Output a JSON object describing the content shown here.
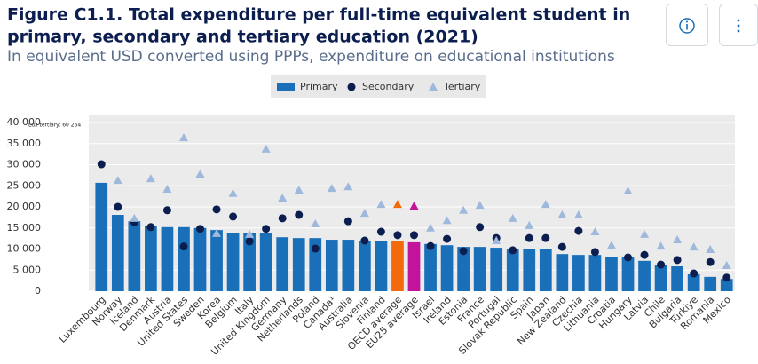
{
  "chart_data": {
    "type": "bar",
    "title": [
      "Figure C1.1. Total expenditure per full-time equivalent student in",
      "primary, secondary and tertiary education (2021)"
    ],
    "subtitle": "In equivalent USD converted using PPPs, expenditure on educational institutions",
    "annotation": "Lux tertiary: 60 264",
    "categories": [
      "Luxembourg",
      "Norway",
      "Iceland",
      "Denmark",
      "Austria",
      "United States",
      "Sweden",
      "Korea",
      "Belgium",
      "Italy",
      "United Kingdom",
      "Germany",
      "Netherlands",
      "Poland",
      "Canada¹",
      "Australia",
      "Slovenia",
      "Finland",
      "OECD average",
      "EU25 average",
      "Israel",
      "Ireland",
      "Estonia",
      "France",
      "Portugal",
      "Slovak Republic",
      "Spain",
      "Japan",
      "New Zealand",
      "Czechia",
      "Lithuania",
      "Croatia",
      "Hungary",
      "Latvia",
      "Chile",
      "Bulgaria",
      "Türkiye",
      "Romania",
      "Mexico"
    ],
    "series": [
      {
        "name": "Primary",
        "mark": "bar",
        "color": "#1a6fb9",
        "colors": [
          "#1a6fb9",
          "#1a6fb9",
          "#1a6fb9",
          "#1a6fb9",
          "#1a6fb9",
          "#1a6fb9",
          "#1a6fb9",
          "#1a6fb9",
          "#1a6fb9",
          "#1a6fb9",
          "#1a6fb9",
          "#1a6fb9",
          "#1a6fb9",
          "#1a6fb9",
          "#1a6fb9",
          "#1a6fb9",
          "#1a6fb9",
          "#1a6fb9",
          "#f26a0b",
          "#c4139b",
          "#1a6fb9",
          "#1a6fb9",
          "#1a6fb9",
          "#1a6fb9",
          "#1a6fb9",
          "#1a6fb9",
          "#1a6fb9",
          "#1a6fb9",
          "#1a6fb9",
          "#1a6fb9",
          "#1a6fb9",
          "#1a6fb9",
          "#1a6fb9",
          "#1a6fb9",
          "#1a6fb9",
          "#1a6fb9",
          "#1a6fb9",
          "#1a6fb9",
          "#1a6fb9"
        ],
        "values": [
          25700,
          18100,
          16600,
          15400,
          15200,
          15200,
          15000,
          14500,
          13700,
          13700,
          13700,
          12800,
          12600,
          12600,
          12200,
          12200,
          12000,
          12000,
          11800,
          11600,
          11200,
          10900,
          10500,
          10500,
          10300,
          10100,
          10100,
          9900,
          8800,
          8600,
          8600,
          8000,
          8000,
          7200,
          6300,
          5900,
          4000,
          3400,
          2900
        ]
      },
      {
        "name": "Secondary",
        "mark": "dot",
        "color": "#0c1e4f",
        "values": [
          30100,
          20000,
          16400,
          15200,
          19200,
          10600,
          14800,
          19400,
          17700,
          11800,
          14800,
          17300,
          18100,
          10100,
          null,
          16600,
          12000,
          14100,
          13300,
          13300,
          10700,
          12400,
          9500,
          15200,
          12600,
          9700,
          12600,
          12600,
          10500,
          14300,
          9300,
          null,
          8000,
          8600,
          6300,
          7400,
          4200,
          6900,
          3200
        ]
      },
      {
        "name": "Tertiary",
        "mark": "triangle",
        "color": "#9fb9dc",
        "colors": [
          "#9fb9dc",
          "#9fb9dc",
          "#9fb9dc",
          "#9fb9dc",
          "#9fb9dc",
          "#9fb9dc",
          "#9fb9dc",
          "#9fb9dc",
          "#9fb9dc",
          "#9fb9dc",
          "#9fb9dc",
          "#9fb9dc",
          "#9fb9dc",
          "#9fb9dc",
          "#9fb9dc",
          "#9fb9dc",
          "#9fb9dc",
          "#9fb9dc",
          "#f26a0b",
          "#c4139b",
          "#9fb9dc",
          "#9fb9dc",
          "#9fb9dc",
          "#9fb9dc",
          "#9fb9dc",
          "#9fb9dc",
          "#9fb9dc",
          "#9fb9dc",
          "#9fb9dc",
          "#9fb9dc",
          "#9fb9dc",
          "#9fb9dc",
          "#9fb9dc",
          "#9fb9dc",
          "#9fb9dc",
          "#9fb9dc",
          "#9fb9dc",
          "#9fb9dc",
          "#9fb9dc"
        ],
        "values": [
          null,
          26300,
          17300,
          26700,
          24200,
          36400,
          27800,
          13700,
          23200,
          13500,
          33700,
          22100,
          24000,
          16000,
          24400,
          24800,
          18500,
          20600,
          20600,
          20200,
          15000,
          16800,
          19200,
          20400,
          12000,
          17300,
          15600,
          20600,
          18100,
          18100,
          14100,
          10900,
          23800,
          13500,
          10700,
          12200,
          10500,
          9900,
          6100
        ]
      }
    ],
    "ylim": [
      0,
      40000
    ],
    "yticks": [
      0,
      {
        "value": 5000,
        "label": "5 000"
      },
      {
        "value": 10000,
        "label": "10 000"
      },
      {
        "value": 15000,
        "label": "15 000"
      },
      {
        "value": 20000,
        "label": "20 000"
      },
      {
        "value": 25000,
        "label": "25 000"
      },
      {
        "value": 30000,
        "label": "30 000"
      },
      {
        "value": 35000,
        "label": "35 000"
      },
      {
        "value": 40000,
        "label": "40 000"
      }
    ],
    "grid": true
  }
}
